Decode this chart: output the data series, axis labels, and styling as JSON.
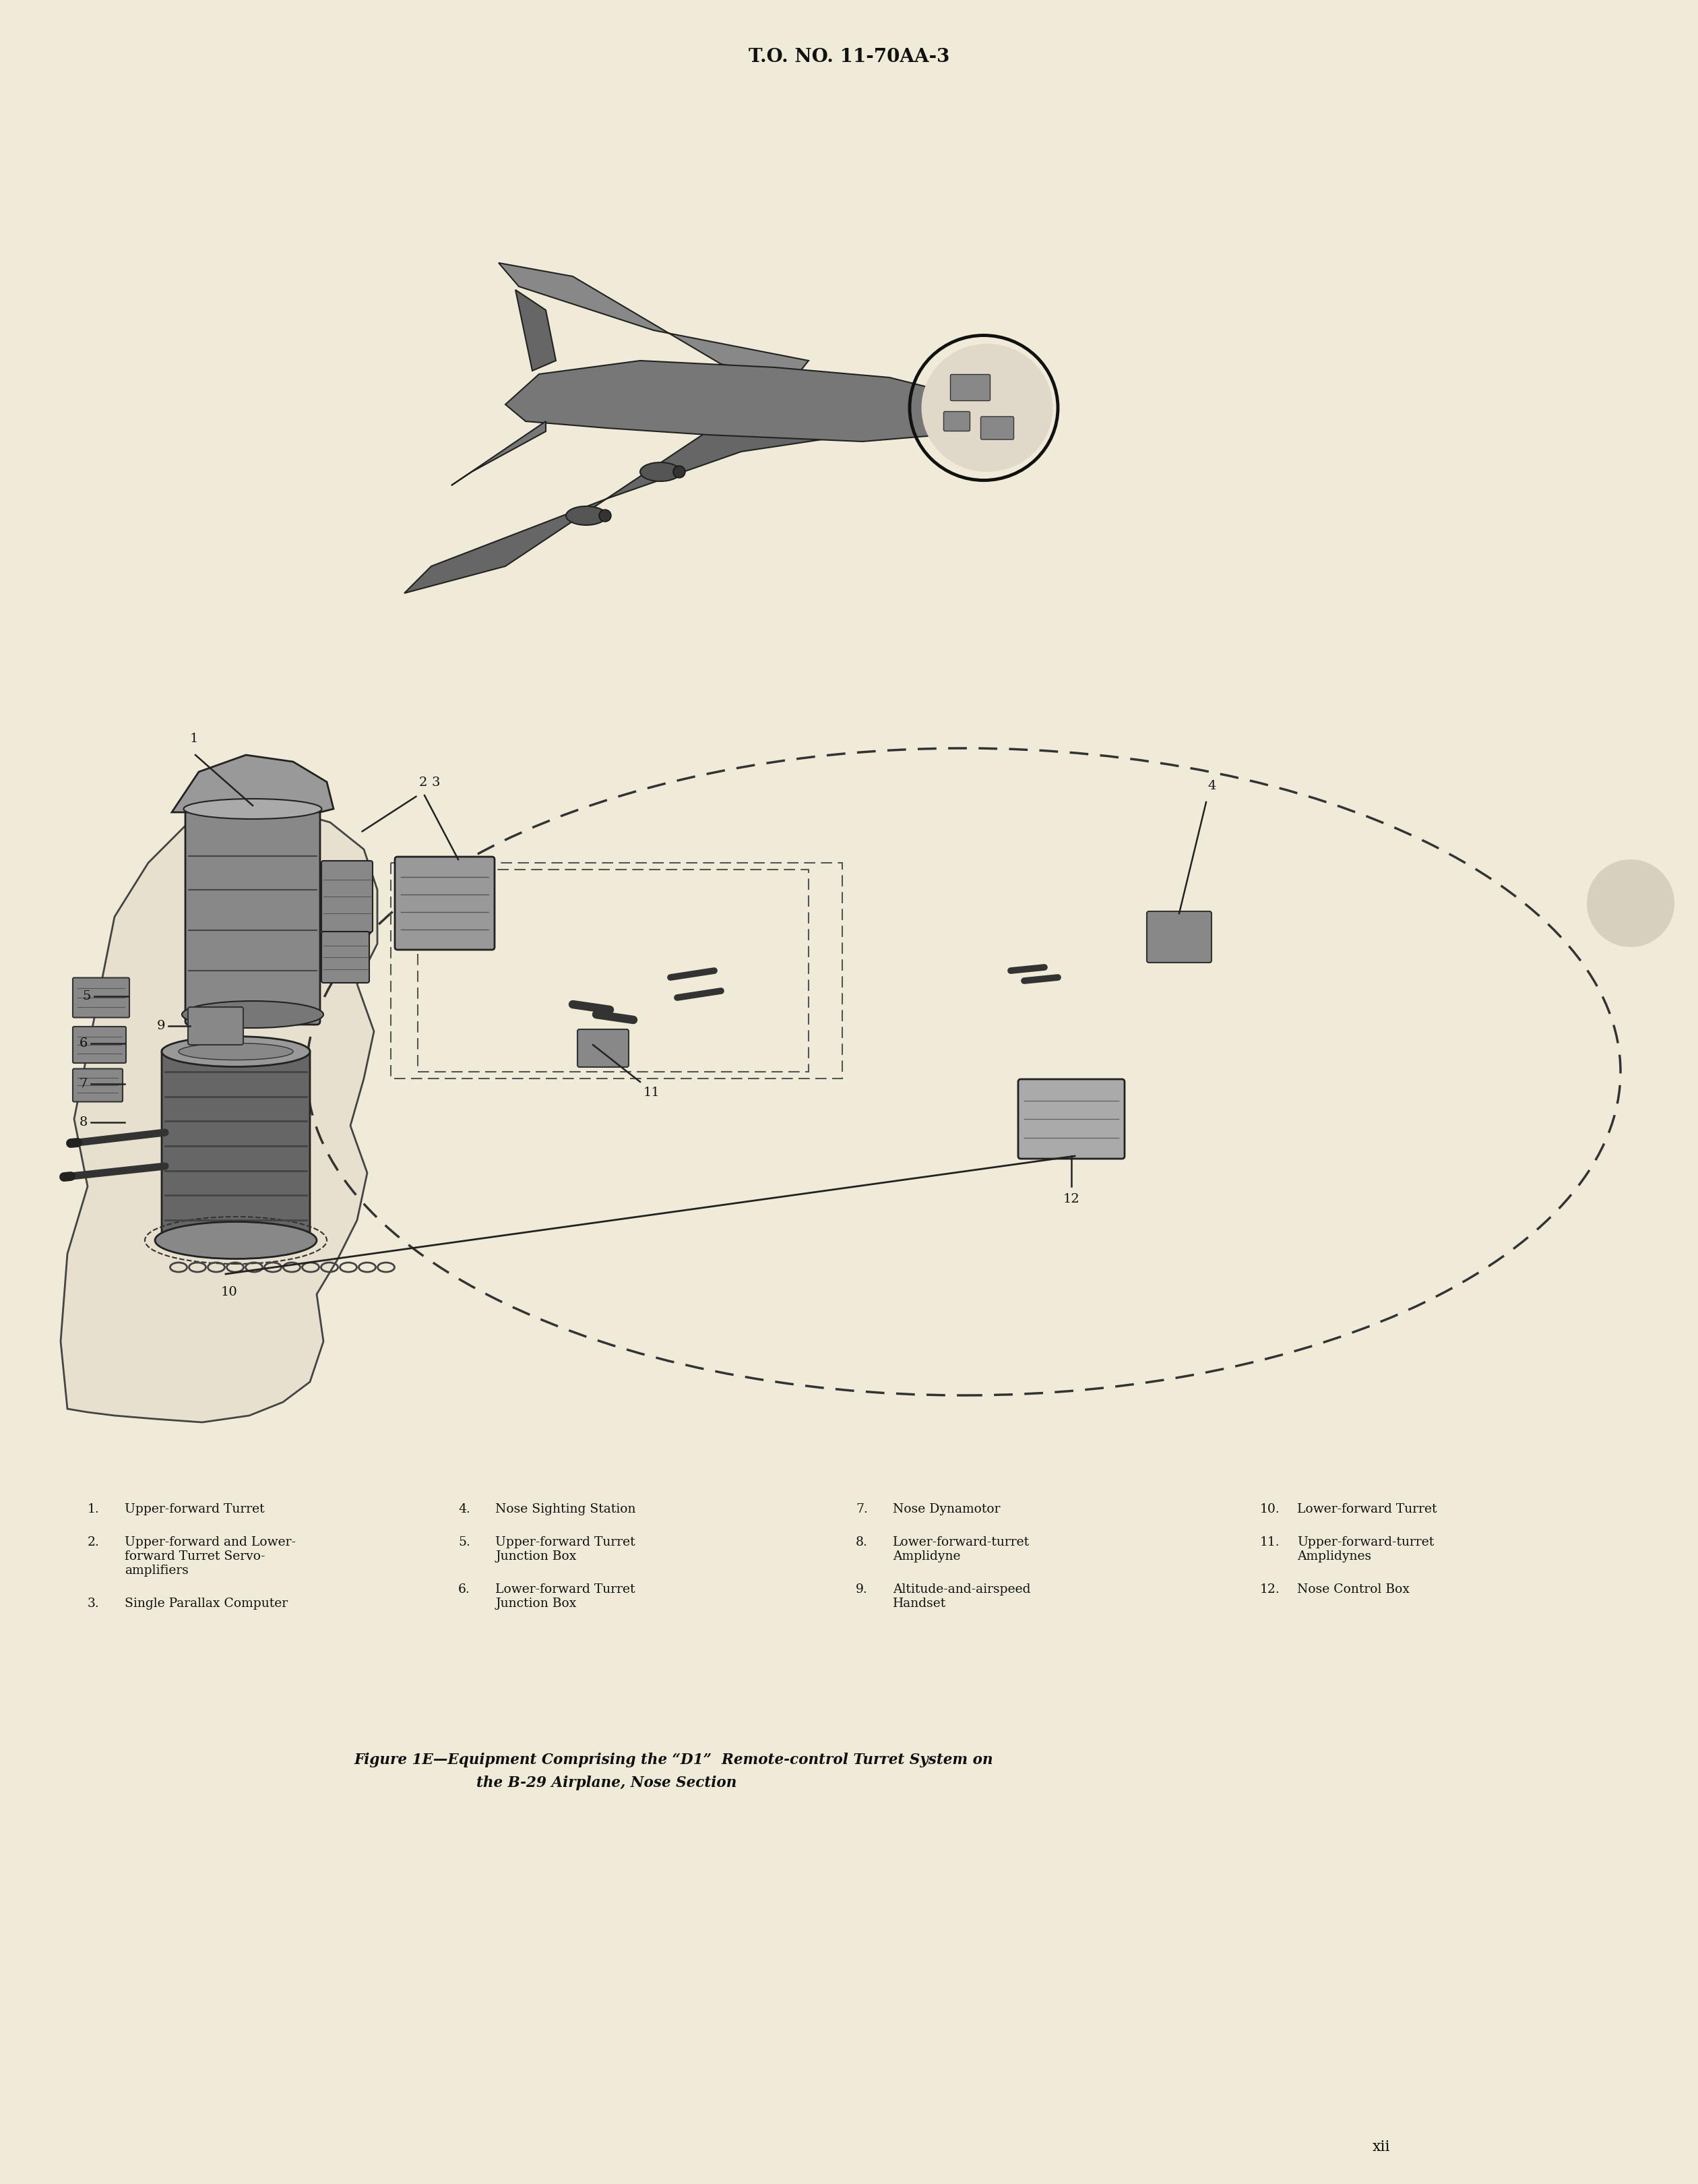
{
  "background_color": "#f0ead8",
  "page_width": 25.2,
  "page_height": 32.4,
  "header_text": "T.O. NO. 11-70AA-3",
  "header_fontsize": 20,
  "page_number": "xii",
  "legend_items_col0": [
    {
      "num": "1.",
      "text": "Upper-forward Turret"
    },
    {
      "num": "2.",
      "text": "Upper-forward and Lower-\nforward Turret Servo-\namplifiers"
    },
    {
      "num": "3.",
      "text": "Single Parallax Computer"
    }
  ],
  "legend_items_col1": [
    {
      "num": "4.",
      "text": "Nose Sighting Station"
    },
    {
      "num": "5.",
      "text": "Upper-forward Turret\nJunction Box"
    },
    {
      "num": "6.",
      "text": "Lower-forward Turret\nJunction Box"
    }
  ],
  "legend_items_col2": [
    {
      "num": "7.",
      "text": "Nose Dynamotor"
    },
    {
      "num": "8.",
      "text": "Lower-forward-turret\nAmplidyne"
    },
    {
      "num": "9.",
      "text": "Altitude-and-airspeed\nHandset"
    }
  ],
  "legend_items_col3": [
    {
      "num": "10.",
      "text": "Lower-forward Turret"
    },
    {
      "num": "11.",
      "text": "Upper-forward-turret\nAmplidynes"
    },
    {
      "num": "12.",
      "text": "Nose Control Box"
    }
  ],
  "caption_line1": "Figure 1E—Equipment Comprising the “D1”  Remote-control Turret System on",
  "caption_line2": "the B-29 Airplane, Nose Section",
  "text_color": "#111111",
  "legend_fontsize": 13.5,
  "caption_fontsize": 15.5
}
